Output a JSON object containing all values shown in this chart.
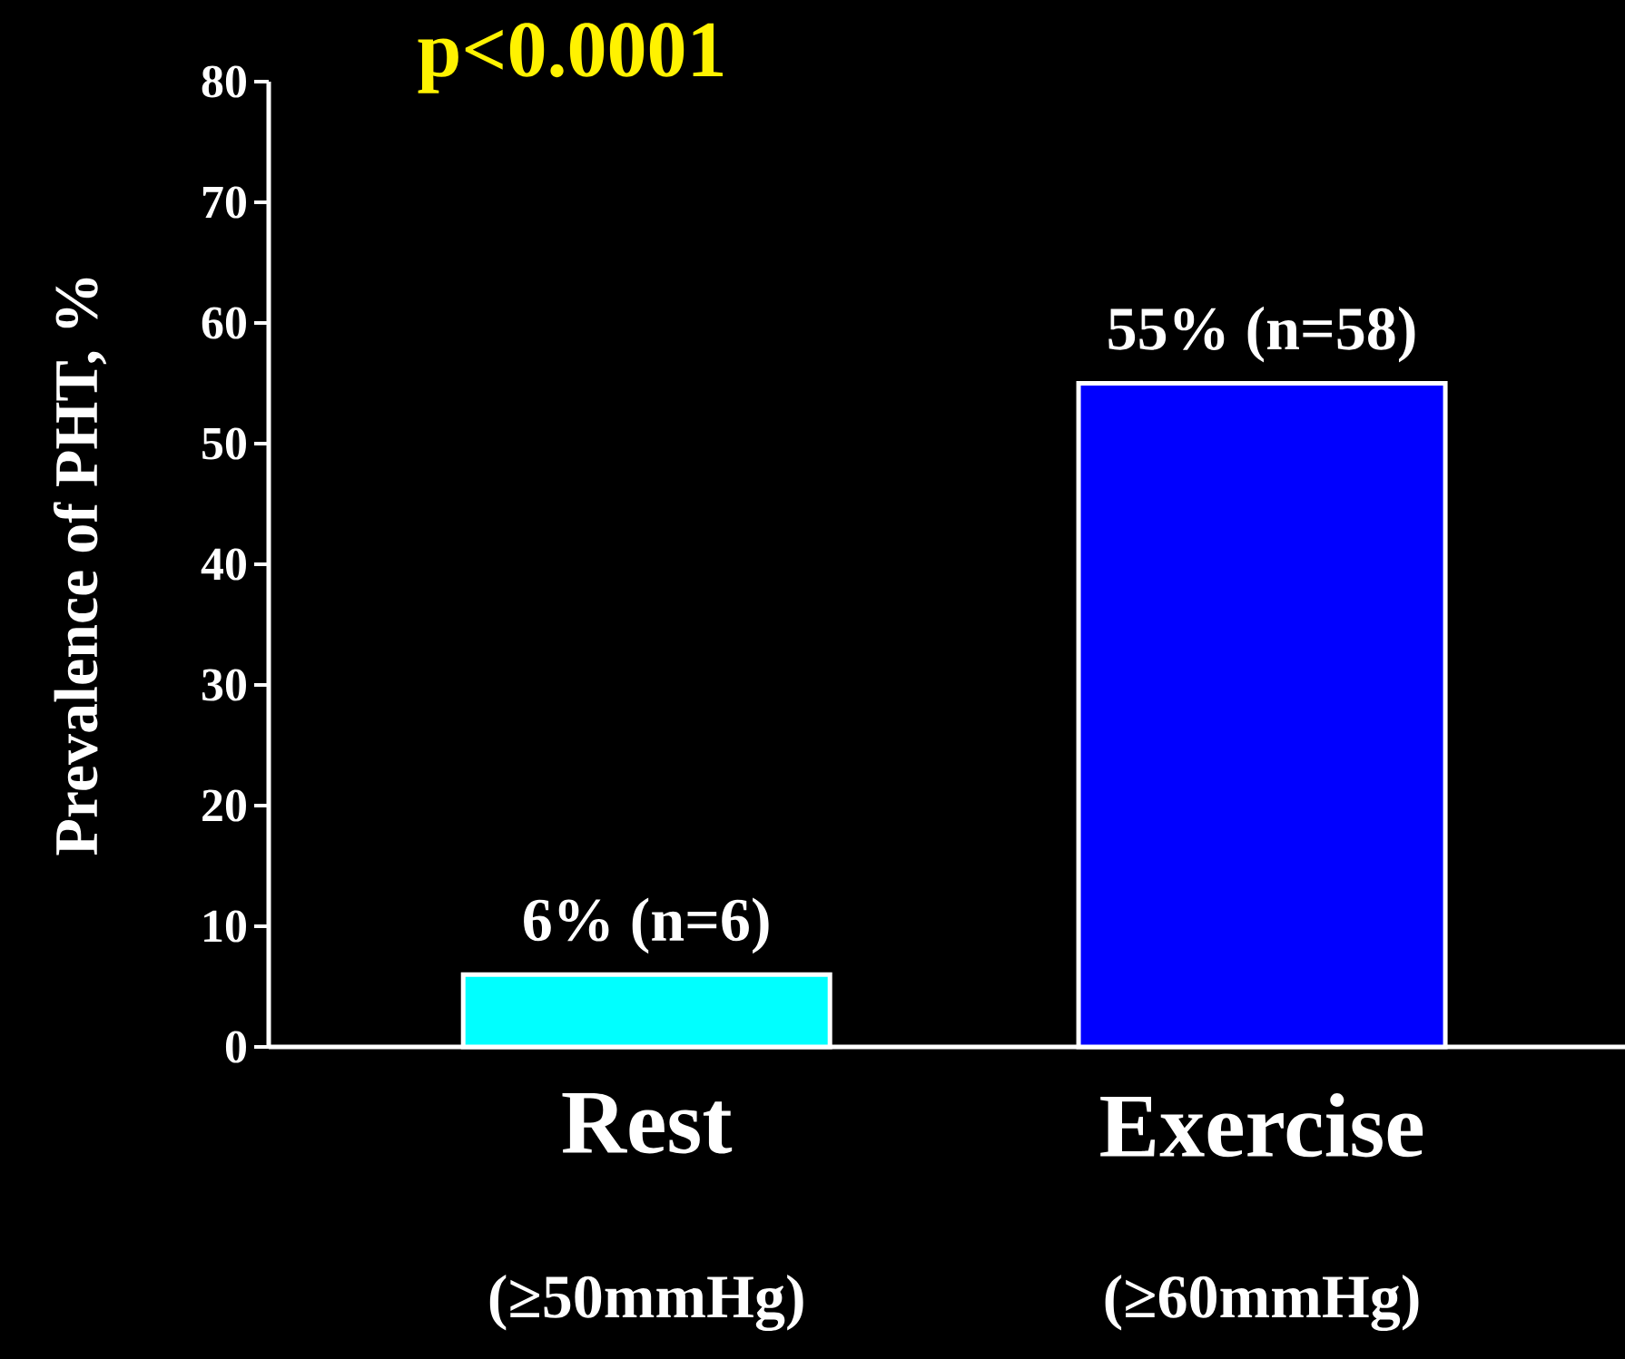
{
  "chart_data": {
    "type": "bar",
    "title": "p<0.0001",
    "ylabel": "Prevalence of PHT, %",
    "categories": [
      "Rest",
      "Exercise"
    ],
    "values": [
      6,
      55
    ],
    "colors": [
      "#00ffff",
      "#0000ff"
    ],
    "value_labels": [
      "6% (n=6)",
      "55% (n=58)"
    ],
    "annotations": [
      "(≥50mmHg)",
      "(≥60mmHg)"
    ],
    "ylim": [
      0,
      80
    ],
    "yticks": [
      0,
      10,
      20,
      30,
      40,
      50,
      60,
      70,
      80
    ]
  }
}
